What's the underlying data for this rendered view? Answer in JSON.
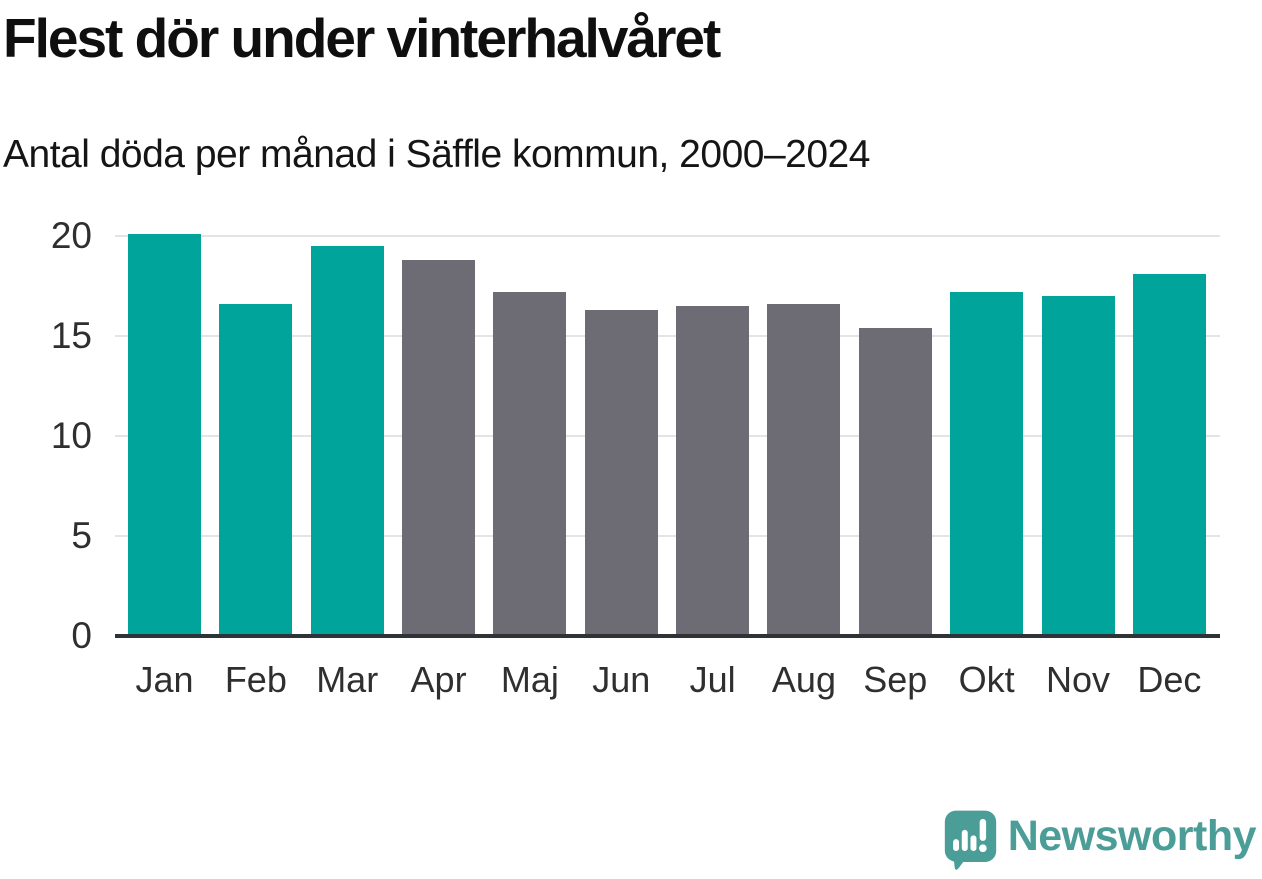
{
  "header": {
    "title": "Flest dör under vinterhalvåret",
    "subtitle": "Antal döda per månad i Säffle kommun, 2000–2024"
  },
  "branding": {
    "logo_text": "Newsworthy",
    "logo_color": "#4b9e97",
    "logo_icon": "speech-bubble-bar-chart-exclamation"
  },
  "chart_data": {
    "type": "bar",
    "title": "Flest dör under vinterhalvåret",
    "subtitle": "Antal döda per månad i Säffle kommun, 2000–2024",
    "categories": [
      "Jan",
      "Feb",
      "Mar",
      "Apr",
      "Maj",
      "Jun",
      "Jul",
      "Aug",
      "Sep",
      "Okt",
      "Nov",
      "Dec"
    ],
    "values": [
      20.1,
      16.6,
      19.5,
      18.8,
      17.2,
      16.3,
      16.5,
      16.6,
      15.4,
      17.2,
      17.0,
      18.1
    ],
    "bar_colors": [
      "#00a49b",
      "#00a49b",
      "#00a49b",
      "#6d6c74",
      "#6d6c74",
      "#6d6c74",
      "#6d6c74",
      "#6d6c74",
      "#6d6c74",
      "#00a49b",
      "#00a49b",
      "#00a49b"
    ],
    "palette": {
      "winter_highlight": "#00a49b",
      "other_months": "#6d6c74"
    },
    "xlabel": "",
    "ylabel": "",
    "ylim": [
      0,
      20
    ],
    "yticks": [
      0,
      5,
      10,
      15,
      20
    ],
    "grid": true,
    "legend": "none",
    "gridline_color": "#e4e4e4",
    "axis_line_color": "#2e3338"
  }
}
